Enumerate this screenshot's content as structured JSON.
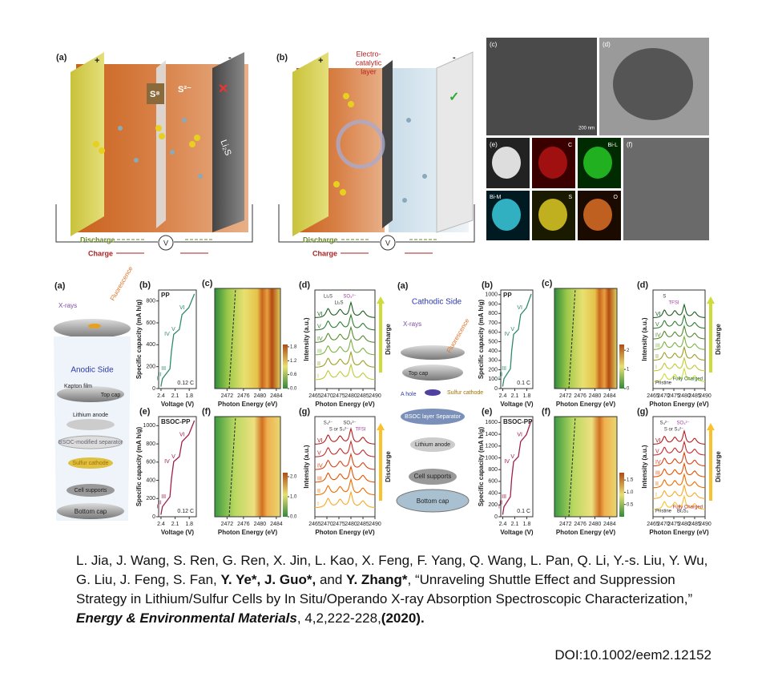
{
  "top": {
    "a": {
      "label": "(a)",
      "plus": "+",
      "minus": "-",
      "s8": "S⁸",
      "s2": "S²⁻",
      "li2s": "Li₂S",
      "discharge": "Discharge",
      "charge": "Charge",
      "v": "V"
    },
    "b": {
      "label": "(b)",
      "plus": "+",
      "minus": "-",
      "layer": [
        "Electro-",
        "catalytic",
        "layer"
      ],
      "discharge": "Discharge",
      "charge": "Charge",
      "v": "V"
    },
    "micro": {
      "c": "(c)",
      "d": "(d)",
      "e": "(e)",
      "f": "(f)",
      "scale": "200 nm",
      "maps": [
        "C",
        "Bi-L",
        "Bi-M",
        "S",
        "O"
      ]
    }
  },
  "bl": {
    "a": {
      "label": "(a)",
      "xrays": "X-rays",
      "fluor": "Fluorescence",
      "side": "Anodic Side",
      "kapton": "Kapton film",
      "top": "Top cap",
      "li": "Lithium anode",
      "sep": "BSOC-modified separator",
      "s": "Sulfur cathode",
      "sup": "Cell supports",
      "bottom": "Bottom cap"
    },
    "b": {
      "label": "(b)",
      "tag": "PP",
      "ylabel": "Specific capacity (mA h/g)",
      "xlabel": "Voltage (V)",
      "ylim": [
        0,
        900
      ],
      "yticks": [
        0,
        200,
        400,
        600,
        800
      ],
      "xlim": [
        2.45,
        1.65
      ],
      "xticks": [
        2.4,
        2.1,
        1.8
      ],
      "rate": "0.12 C",
      "stages": [
        "I",
        "II",
        "III",
        "IV",
        "V",
        "VI"
      ]
    },
    "c": {
      "label": "(c)",
      "xlabel": "Photon Energy (eV)",
      "xlim": [
        2469,
        2485
      ],
      "xticks": [
        2472,
        2476,
        2480,
        2484
      ],
      "clim": [
        0,
        1.9
      ],
      "cticks": [
        {
          "value": 0,
          "label": "0.0"
        },
        0.6,
        1.2,
        1.8
      ]
    },
    "d": {
      "label": "(d)",
      "ylabel": "Intensity (a.u.)",
      "xlabel": "Photon Energy (eV)",
      "xlim": [
        2465,
        2490
      ],
      "xticks": [
        2465,
        2470,
        2475,
        2480,
        2485,
        2490
      ],
      "peaks": [
        "Li₂S",
        "Li₂S",
        "SO₄²⁻"
      ],
      "stages": [
        "VI",
        "V",
        "IV",
        "III",
        "II",
        "I"
      ],
      "arrow": "Discharge"
    },
    "e": {
      "label": "(e)",
      "tag": "BSOC-PP",
      "ylabel": "Specific capacity (mA h/g)",
      "xlabel": "Voltage (V)",
      "ylim": [
        0,
        1100
      ],
      "yticks": [
        0,
        200,
        400,
        600,
        800,
        1000
      ],
      "xlim": [
        2.45,
        1.65
      ],
      "xticks": [
        2.4,
        2.1,
        1.8
      ],
      "rate": "0.12 C",
      "stages": [
        "I",
        "II",
        "III",
        "IV",
        "V",
        "VI"
      ]
    },
    "f": {
      "label": "(f)",
      "xlabel": "Photon Energy (eV)",
      "xlim": [
        2469,
        2485
      ],
      "xticks": [
        2472,
        2476,
        2480,
        2484
      ],
      "clim": [
        0,
        2.2
      ],
      "cticks": [
        {
          "value": 0,
          "label": "0.0"
        },
        {
          "value": 1,
          "label": "1.0"
        },
        {
          "value": 2,
          "label": "2.0"
        }
      ]
    },
    "g": {
      "label": "(g)",
      "ylabel": "Intensity (a.u.)",
      "xlabel": "Photon Energy (eV)",
      "xlim": [
        2465,
        2490
      ],
      "xticks": [
        2465,
        2470,
        2475,
        2480,
        2485,
        2490
      ],
      "peaks": [
        "S₄²⁻",
        "S or S₃²⁻",
        "SO₄²⁻",
        "TFSI"
      ],
      "stages": [
        "VI",
        "V",
        "IV",
        "III",
        "II",
        "I"
      ],
      "arrow": "Discharge"
    }
  },
  "br": {
    "a": {
      "label": "(a)",
      "side": "Cathodic Side",
      "xrays": "X-rays",
      "fluor": "Fluorescence",
      "top": "Top cap",
      "hole": "A hole",
      "s": "Sulfur cathode",
      "sep": "BSOC layer Separator",
      "li": "Lithium anode",
      "sup": "Cell supports",
      "bottom": "Bottom cap"
    },
    "b": {
      "label": "(b)",
      "tag": "PP",
      "ylabel": "Specific capacity (mA h/g)",
      "xlabel": "Voltage (V)",
      "ylim": [
        0,
        1050
      ],
      "yticks": [
        0,
        100,
        200,
        300,
        400,
        500,
        600,
        700,
        800,
        900,
        1000
      ],
      "xlim": [
        2.45,
        1.65
      ],
      "xticks": [
        2.4,
        2.1,
        1.8
      ],
      "rate": "0.1 C",
      "stages": [
        "I",
        "II",
        "III",
        "IV",
        "V",
        "VI"
      ]
    },
    "c": {
      "label": "(c)",
      "xlabel": "Photon Energy (eV)",
      "xlim": [
        2469,
        2486
      ],
      "xticks": [
        2472,
        2476,
        2480,
        2484
      ],
      "clim": [
        0,
        2.3
      ],
      "cticks": [
        0,
        1,
        2
      ]
    },
    "d": {
      "label": "(d)",
      "ylabel": "Intensity (a.u.)",
      "xlabel": "Photon Energy (eV)",
      "xlim": [
        2465,
        2490
      ],
      "xticks": [
        2465,
        2470,
        2475,
        2480,
        2485,
        2490
      ],
      "peaks": [
        "S",
        "TFSI"
      ],
      "stages": [
        "VI",
        "V",
        "IV",
        "III",
        "II",
        "I"
      ],
      "pristine": "Pristine",
      "charged": "Fully Charged",
      "arrow": "Discharge"
    },
    "e": {
      "label": "(e)",
      "tag": "BSOC-PP",
      "ylabel": "Specific capacity (mA h/g)",
      "xlabel": "Voltage (V)",
      "ylim": [
        0,
        1700
      ],
      "yticks": [
        0,
        200,
        400,
        600,
        800,
        1000,
        1200,
        1400,
        1600
      ],
      "xlim": [
        2.45,
        1.65
      ],
      "xticks": [
        2.4,
        2.1,
        1.8
      ],
      "rate": "0.1 C",
      "stages": [
        "I",
        "II",
        "III",
        "IV",
        "V",
        "VI"
      ]
    },
    "f": {
      "label": "(f)",
      "xlabel": "Photon Energy (eV)",
      "xlim": [
        2469,
        2486
      ],
      "xticks": [
        2472,
        2476,
        2480,
        2484
      ],
      "clim": [
        0,
        1.8
      ],
      "cticks": [
        0.5,
        {
          "value": 1,
          "label": "1.0"
        },
        1.5
      ]
    },
    "g": {
      "label": "(g)",
      "ylabel": "Intensity (a.u.)",
      "xlabel": "Photon Energy (eV)",
      "xlim": [
        2465,
        2490
      ],
      "xticks": [
        2465,
        2470,
        2475,
        2480,
        2485,
        2490
      ],
      "peaks": [
        "S₄²⁻",
        "S or S₃²⁻",
        "SO₄²⁻"
      ],
      "stages": [
        "VI",
        "V",
        "IV",
        "III",
        "II",
        "I"
      ],
      "pristine": "Pristine",
      "bi": "Bi₂S₃",
      "charged": "Fully Charged",
      "arrow": "Discharge"
    }
  },
  "citation": {
    "authors": "L. Jia, J. Wang, S. Ren, G. Ren, X. Jin, L. Kao, X. Feng, F. Yang, Q. Wang, L. Pan, Q. Li, Y.-s. Liu, Y. Wu, G. Liu, J. Feng, S. Fan, ",
    "bold1": "Y. Ye*, J. Guo*,",
    "and": " and ",
    "bold2": "Y. Zhang*",
    "title": ", “Unraveling Shuttle Effect and Suppression Strategy in Lithium/Sulfur Cells by In Situ/Operando X-ray Absorption Spectroscopic Characterization,” ",
    "journal": "Energy & Environmental Materials",
    "volume": ", 4,2,222-228,",
    "year": "(2020)."
  },
  "doi": "DOI:10.1002/eem2.12152"
}
